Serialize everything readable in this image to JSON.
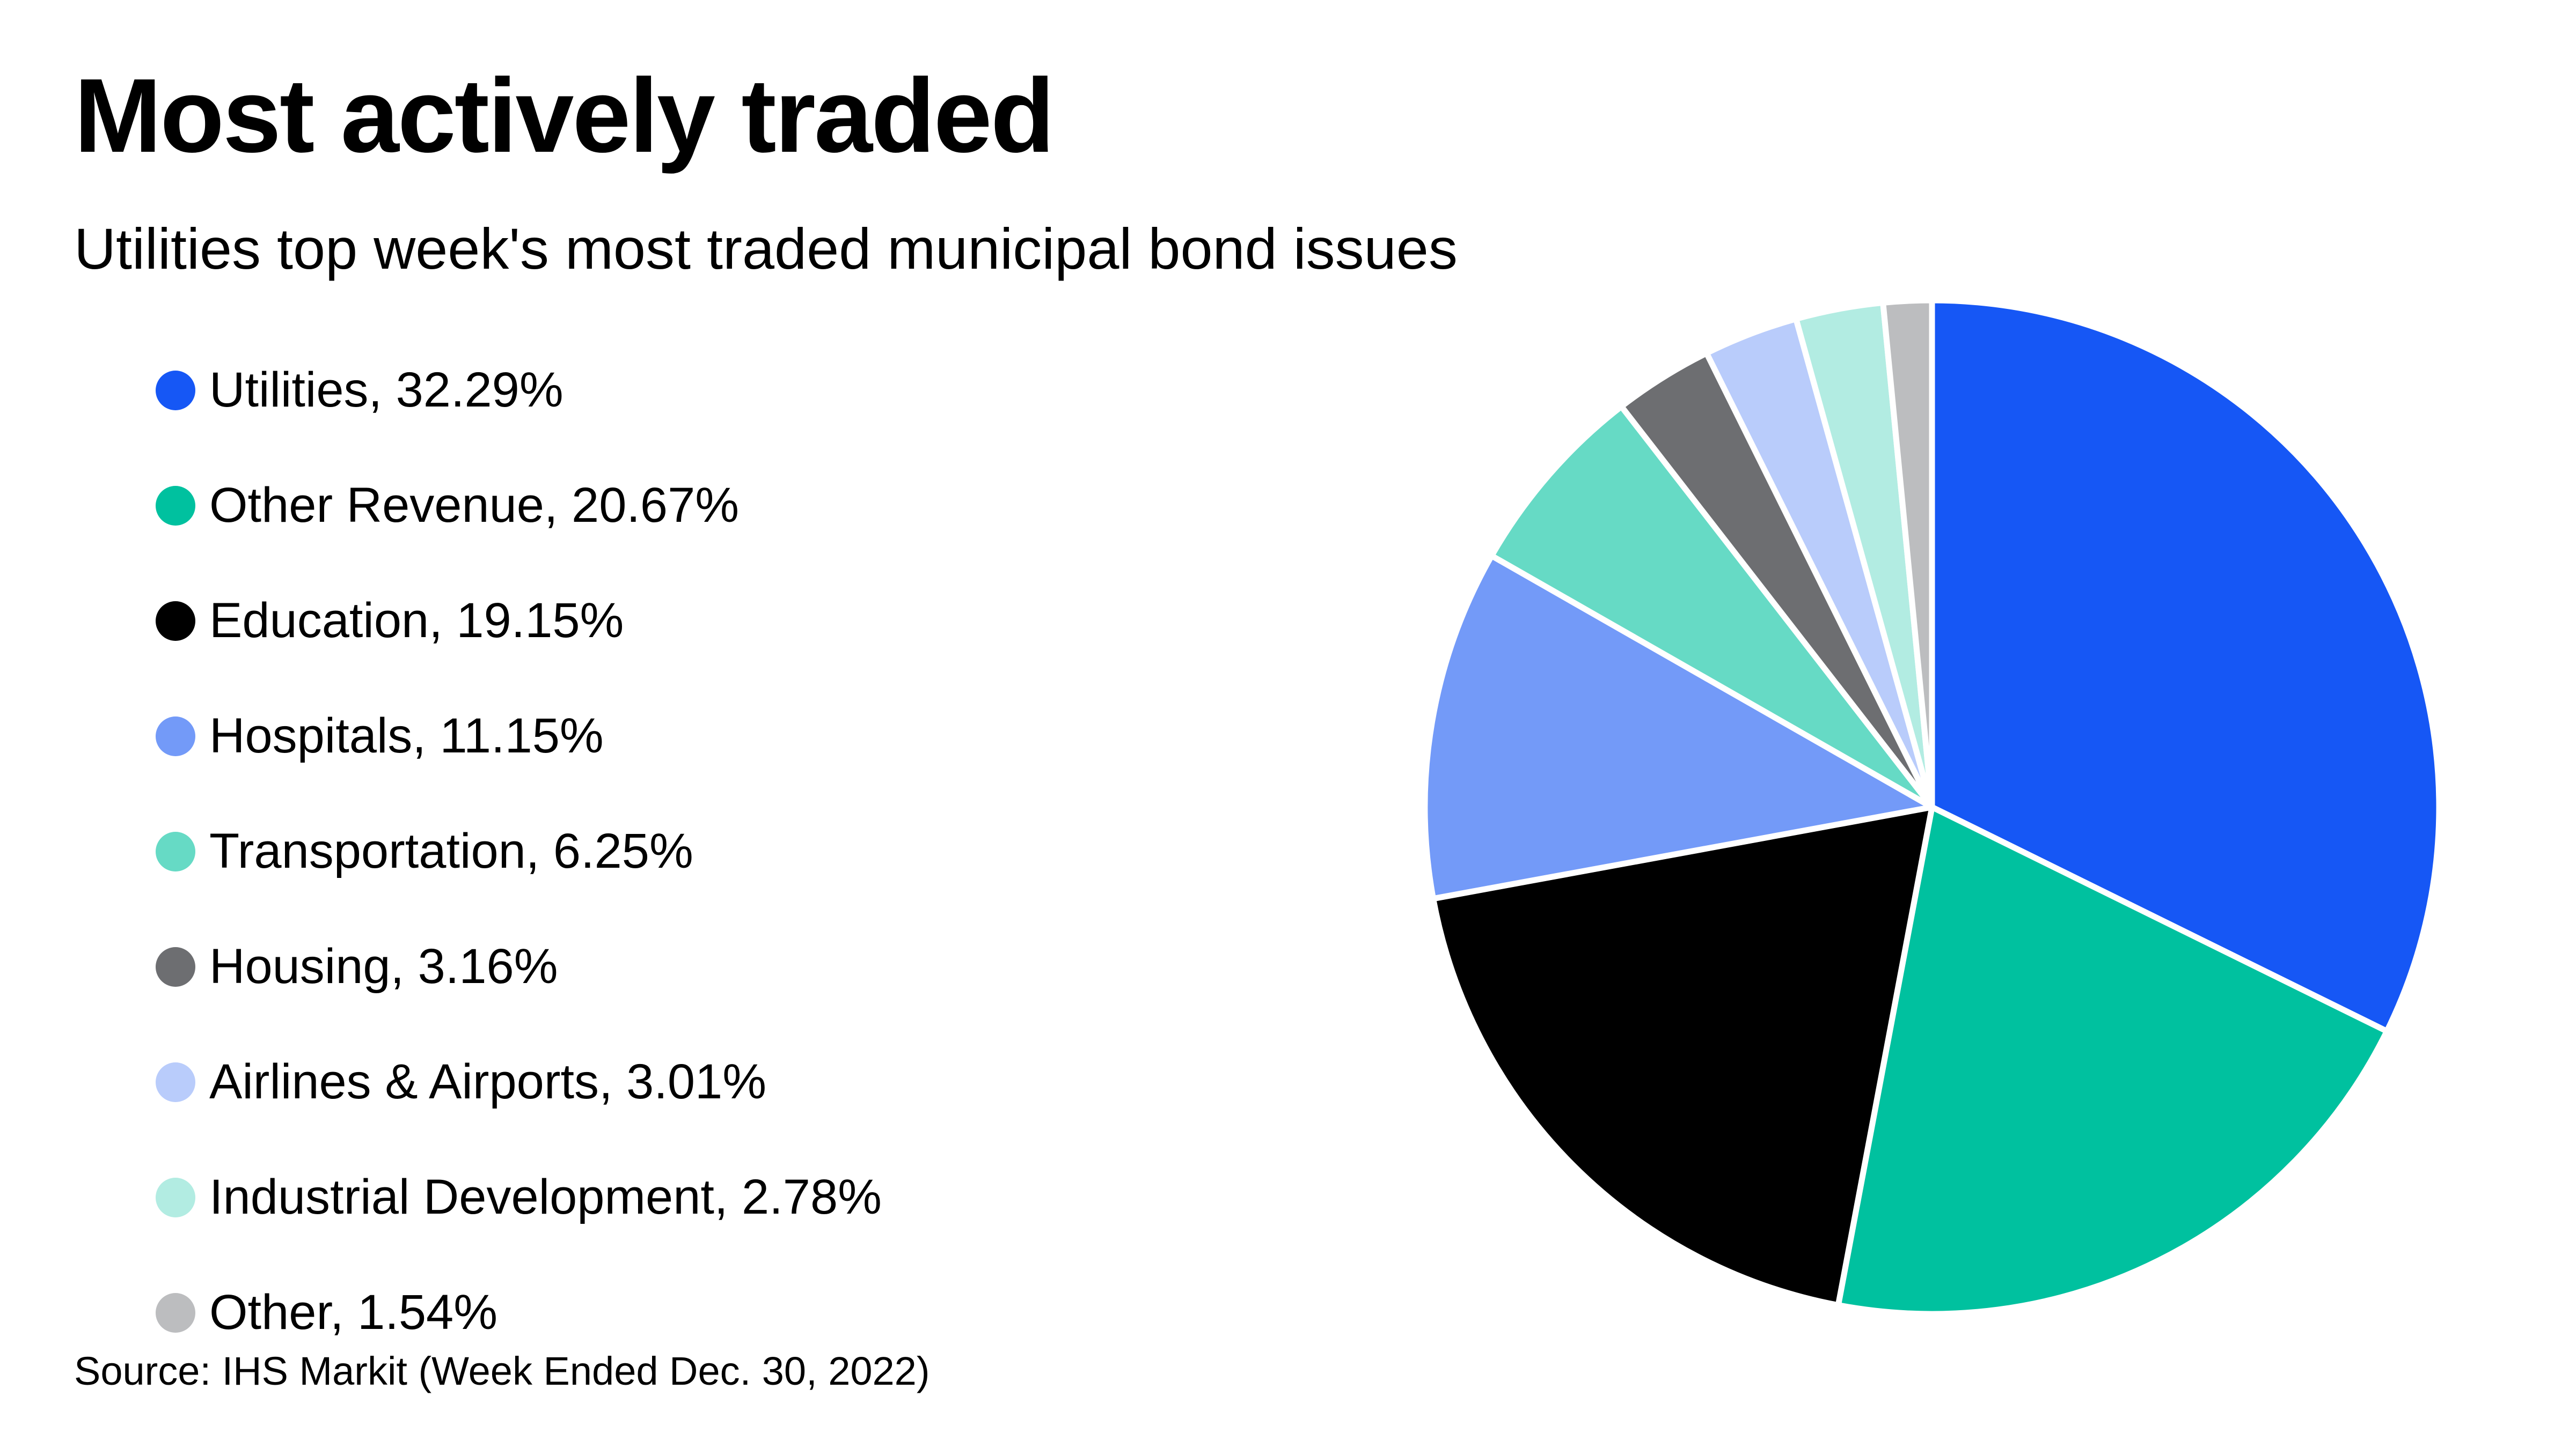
{
  "title": "Most actively traded",
  "subtitle": "Utilities top week's most traded municipal bond issues",
  "source": "Source: IHS Markit (Week Ended Dec. 30, 2022)",
  "chart_data": {
    "type": "pie",
    "title": "Most actively traded",
    "subtitle": "Utilities top week's most traded municipal bond issues",
    "legend_position": "left",
    "start_angle": "12 o'clock, clockwise",
    "slices": [
      {
        "label": "Utilities",
        "value": 32.29,
        "legend": "Utilities, 32.29%",
        "color": "#1657F5"
      },
      {
        "label": "Other Revenue",
        "value": 20.67,
        "legend": "Other Revenue, 20.67%",
        "color": "#00C19F"
      },
      {
        "label": "Education",
        "value": 19.15,
        "legend": "Education, 19.15%",
        "color": "#000000"
      },
      {
        "label": "Hospitals",
        "value": 11.15,
        "legend": "Hospitals, 11.15%",
        "color": "#739AF8"
      },
      {
        "label": "Transportation",
        "value": 6.25,
        "legend": "Transportation, 6.25%",
        "color": "#66DAC5"
      },
      {
        "label": "Housing",
        "value": 3.16,
        "legend": "Housing, 3.16%",
        "color": "#6D6E71"
      },
      {
        "label": "Airlines & Airports",
        "value": 3.01,
        "legend": "Airlines & Airports, 3.01%",
        "color": "#B9CCFB"
      },
      {
        "label": "Industrial Development",
        "value": 2.78,
        "legend": "Industrial Development, 2.78%",
        "color": "#B2ECE2"
      },
      {
        "label": "Other",
        "value": 1.54,
        "legend": "Other, 1.54%",
        "color": "#BCBDBF"
      }
    ]
  }
}
